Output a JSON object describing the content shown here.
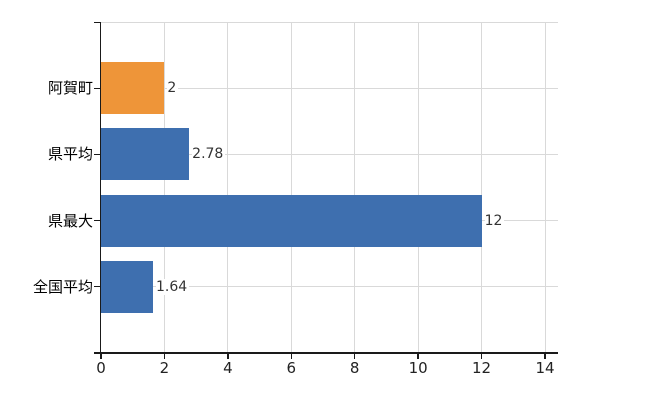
{
  "chart_data": {
    "type": "bar",
    "orientation": "horizontal",
    "title": "",
    "xlabel": "",
    "ylabel": "",
    "categories": [
      "阿賀町",
      "県平均",
      "県最大",
      "全国平均"
    ],
    "values": [
      2,
      2.78,
      12,
      1.64
    ],
    "value_labels": [
      "2",
      "2.78",
      "12",
      "1.64"
    ],
    "series": [
      {
        "name": "",
        "values": [
          2,
          2.78,
          12,
          1.64
        ]
      }
    ],
    "bar_colors": [
      "#EE9539",
      "#3E6FAF",
      "#3E6FAF",
      "#3E6FAF"
    ],
    "xlim": [
      0,
      14
    ],
    "x_ticks": [
      0,
      2,
      4,
      6,
      8,
      10,
      12,
      14
    ],
    "x_tick_labels": [
      "0",
      "2",
      "4",
      "6",
      "8",
      "10",
      "12",
      "14"
    ],
    "grid": true,
    "legend_position": "none",
    "colors": {
      "gridline": "#d9d9d9",
      "axis": "#1a1a1a",
      "category_label": "#000000",
      "tick_label": "#222222",
      "value_label": "#333333",
      "background": "#ffffff"
    }
  }
}
